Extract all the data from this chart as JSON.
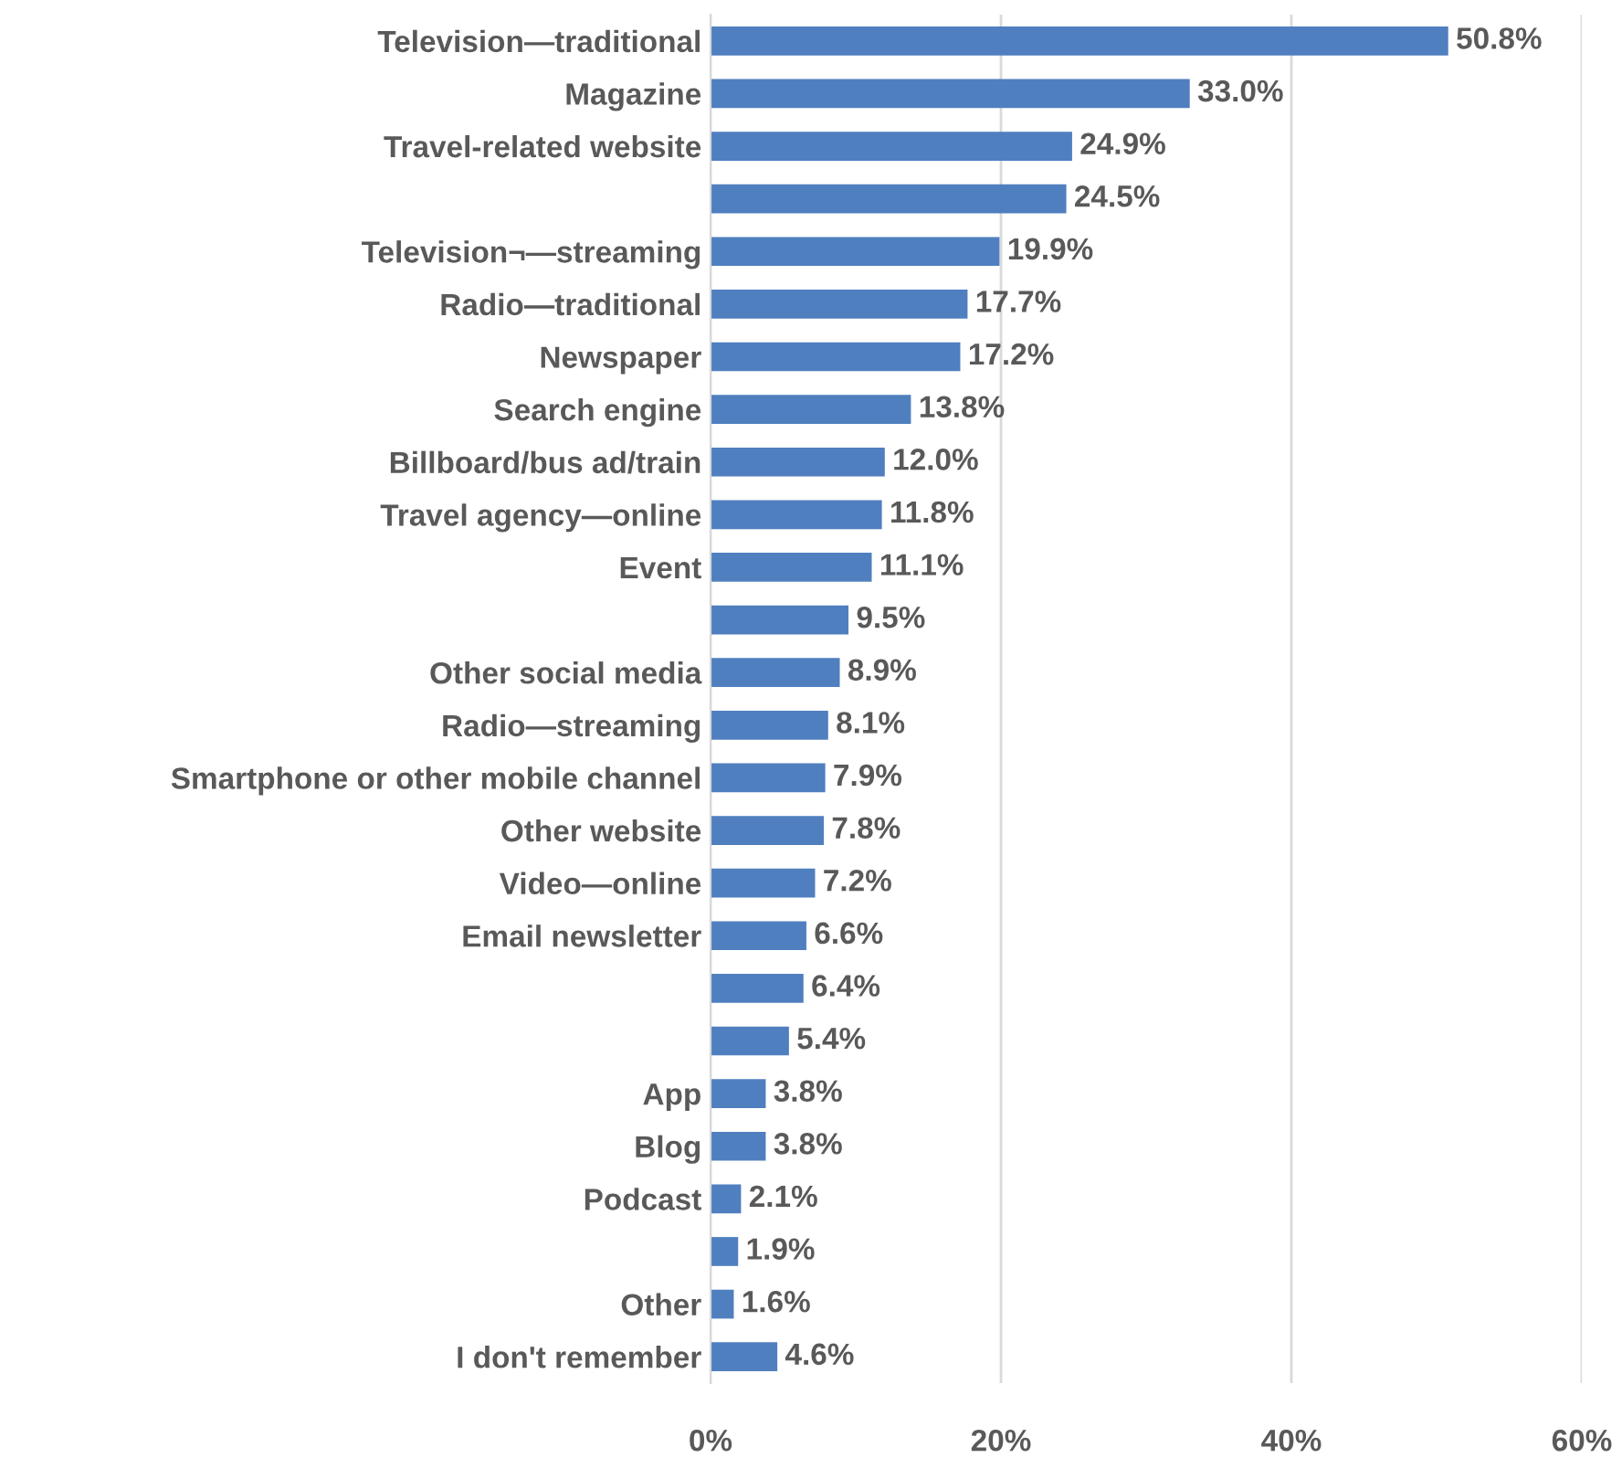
{
  "chart_data": {
    "type": "bar",
    "orientation": "horizontal",
    "categories": [
      "Television—traditional",
      "Magazine",
      "Travel-related website",
      null,
      "Television¬—streaming",
      "Radio—traditional",
      "Newspaper",
      "Search engine",
      "Billboard/bus ad/train",
      "Travel agency—online",
      "Event",
      null,
      "Other social media",
      "Radio—streaming",
      "Smartphone or other mobile channel",
      "Other website",
      "Video—online",
      "Email newsletter",
      null,
      null,
      "App",
      "Blog",
      "Podcast",
      null,
      "Other",
      "I don't remember"
    ],
    "values": [
      50.8,
      33.0,
      24.9,
      24.5,
      19.9,
      17.7,
      17.2,
      13.8,
      12.0,
      11.8,
      11.1,
      9.5,
      8.9,
      8.1,
      7.9,
      7.8,
      7.2,
      6.6,
      6.4,
      5.4,
      3.8,
      3.8,
      2.1,
      1.9,
      1.6,
      4.6
    ],
    "value_labels": [
      "50.8%",
      "33.0%",
      "24.9%",
      "24.5%",
      "19.9%",
      "17.7%",
      "17.2%",
      "13.8%",
      "12.0%",
      "11.8%",
      "11.1%",
      "9.5%",
      "8.9%",
      "8.1%",
      "7.9%",
      "7.8%",
      "7.2%",
      "6.6%",
      "6.4%",
      "5.4%",
      "3.8%",
      "3.8%",
      "2.1%",
      "1.9%",
      "1.6%",
      "4.6%"
    ],
    "color": "#4f7fbf",
    "xlim": [
      0,
      60
    ],
    "xticks": [
      {
        "value": 0,
        "label": "0%"
      },
      {
        "value": 20,
        "label": "20%"
      },
      {
        "value": 40,
        "label": "40%"
      },
      {
        "value": 60,
        "label": "60%"
      }
    ],
    "grid": "x",
    "legend": false
  }
}
